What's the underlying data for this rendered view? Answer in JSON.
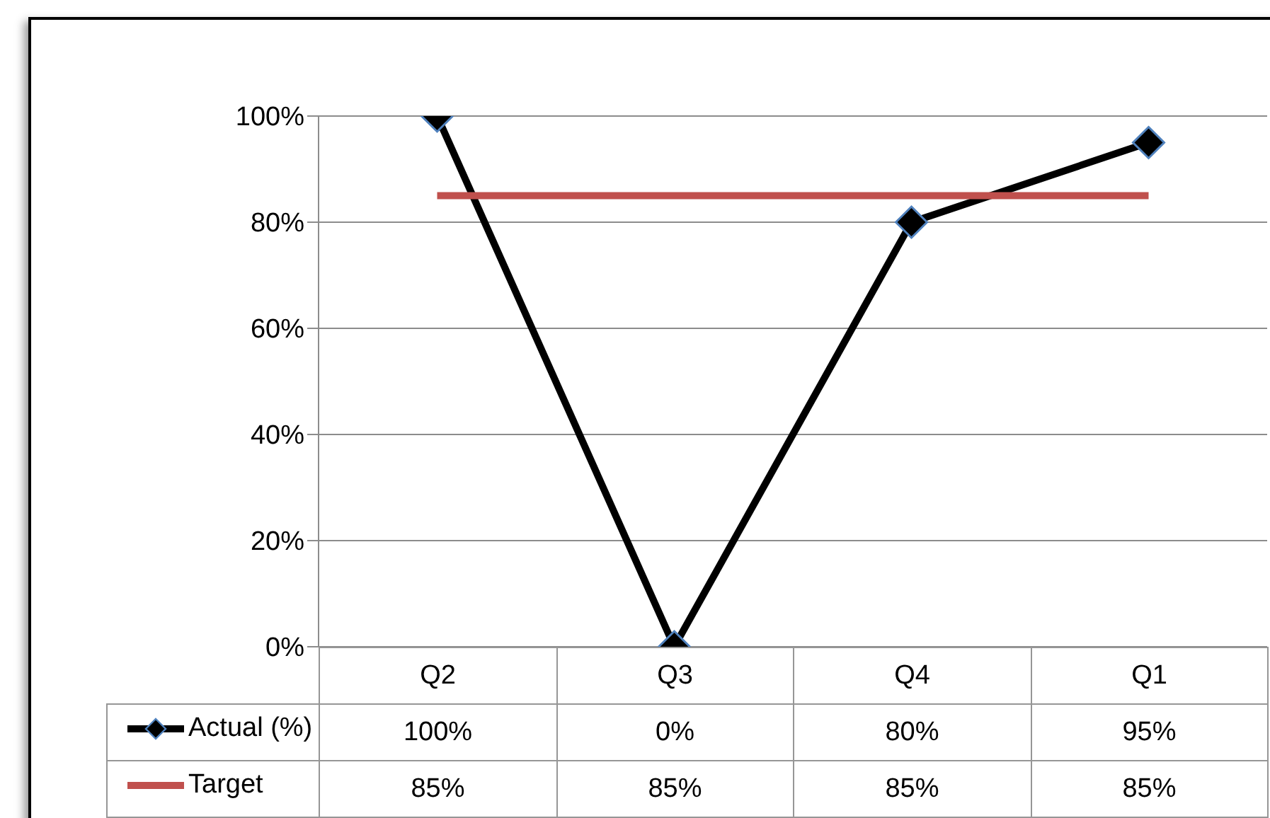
{
  "chart_data": {
    "type": "line",
    "categories": [
      "Q2",
      "Q3",
      "Q4",
      "Q1"
    ],
    "series": [
      {
        "name": "Actual (%)",
        "color": "#000000",
        "values": [
          100,
          0,
          80,
          95
        ],
        "marker": "diamond",
        "value_labels": [
          "100%",
          "0%",
          "80%",
          "95%"
        ]
      },
      {
        "name": "Target",
        "color": "#c0504d",
        "values": [
          85,
          85,
          85,
          85
        ],
        "marker": "none",
        "value_labels": [
          "85%",
          "85%",
          "85%",
          "85%"
        ]
      }
    ],
    "ylim": [
      0,
      100
    ],
    "yticks": [
      {
        "value": 0,
        "label": "0%"
      },
      {
        "value": 20,
        "label": "20%"
      },
      {
        "value": 40,
        "label": "40%"
      },
      {
        "value": 60,
        "label": "60%"
      },
      {
        "value": 80,
        "label": "80%"
      },
      {
        "value": 100,
        "label": "100%"
      }
    ],
    "grid": "y",
    "legend": "bottom"
  }
}
